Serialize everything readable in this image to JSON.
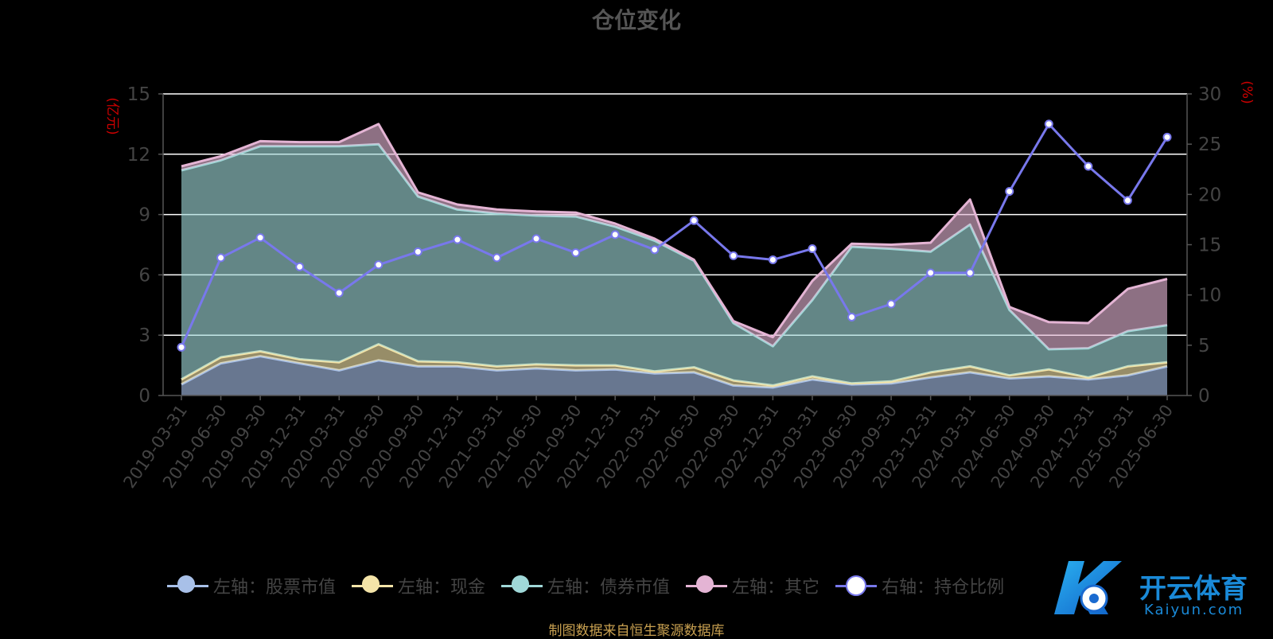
{
  "title": "仓位变化",
  "source": "制图数据来自恒生聚源数据库",
  "watermark": {
    "name": "开云体育",
    "domain": "Kaiyun.com"
  },
  "colors": {
    "stock": "#a8c0e8",
    "cash": "#f4e4a8",
    "bond": "#a0d8d8",
    "other": "#e4b4d4",
    "ratio": "#7878ec",
    "grid": "#ffffff",
    "unit": "#cc0000"
  },
  "chart_data": {
    "type": "area",
    "title": "仓位变化",
    "categories": [
      "2019-03-31",
      "2019-06-30",
      "2019-09-30",
      "2019-12-31",
      "2020-03-31",
      "2020-06-30",
      "2020-09-30",
      "2020-12-31",
      "2021-03-31",
      "2021-06-30",
      "2021-09-30",
      "2021-12-31",
      "2022-03-31",
      "2022-06-30",
      "2022-09-30",
      "2022-12-31",
      "2023-03-31",
      "2023-06-30",
      "2023-09-30",
      "2023-12-31",
      "2024-03-31",
      "2024-06-30",
      "2024-09-30",
      "2024-12-31",
      "2025-03-31",
      "2025-06-30"
    ],
    "left_axis": {
      "unit": "(亿元)",
      "ylim": [
        0,
        15
      ],
      "ticks": [
        "0",
        "3",
        "6",
        "9",
        "12",
        "15"
      ]
    },
    "right_axis": {
      "unit": "(%)",
      "ylim": [
        0,
        30
      ],
      "ticks": [
        "0",
        "5",
        "10",
        "15",
        "20",
        "25",
        "30"
      ]
    },
    "stacked": true,
    "series": [
      {
        "name": "左轴：股票市值",
        "axis": "left",
        "color_key": "stock",
        "values": [
          0.55,
          1.6,
          1.95,
          1.6,
          1.25,
          1.75,
          1.45,
          1.45,
          1.25,
          1.35,
          1.25,
          1.3,
          1.1,
          1.15,
          0.5,
          0.4,
          0.8,
          0.55,
          0.6,
          0.9,
          1.15,
          0.85,
          0.95,
          0.8,
          1.0,
          1.45
        ]
      },
      {
        "name": "左轴：现金",
        "axis": "left",
        "color_key": "cash",
        "values": [
          0.25,
          0.3,
          0.25,
          0.2,
          0.4,
          0.8,
          0.25,
          0.2,
          0.2,
          0.2,
          0.25,
          0.2,
          0.1,
          0.25,
          0.25,
          0.1,
          0.15,
          0.05,
          0.1,
          0.25,
          0.3,
          0.15,
          0.35,
          0.1,
          0.45,
          0.2
        ]
      },
      {
        "name": "左轴：债券市值",
        "axis": "left",
        "color_key": "bond",
        "values": [
          10.4,
          9.8,
          10.2,
          10.6,
          10.75,
          9.95,
          8.2,
          7.6,
          7.6,
          7.4,
          7.4,
          6.9,
          6.5,
          5.3,
          2.85,
          1.95,
          3.8,
          6.8,
          6.6,
          6.0,
          7.05,
          3.25,
          1.0,
          1.45,
          1.75,
          1.85
        ]
      },
      {
        "name": "左轴：其它",
        "axis": "left",
        "color_key": "other",
        "values": [
          0.2,
          0.2,
          0.25,
          0.2,
          0.2,
          1.0,
          0.2,
          0.25,
          0.2,
          0.2,
          0.2,
          0.15,
          0.1,
          0.05,
          0.1,
          0.45,
          0.95,
          0.15,
          0.2,
          0.45,
          1.25,
          0.15,
          1.35,
          1.25,
          2.1,
          2.3
        ]
      },
      {
        "name": "右轴：持仓比例",
        "axis": "right",
        "color_key": "ratio",
        "values": [
          4.8,
          13.7,
          15.7,
          12.8,
          10.2,
          13.0,
          14.3,
          15.5,
          13.7,
          15.6,
          14.2,
          16.0,
          14.5,
          17.4,
          13.9,
          13.5,
          14.6,
          7.8,
          9.1,
          12.2,
          12.2,
          20.3,
          27.0,
          22.8,
          19.4,
          25.7
        ]
      }
    ]
  }
}
